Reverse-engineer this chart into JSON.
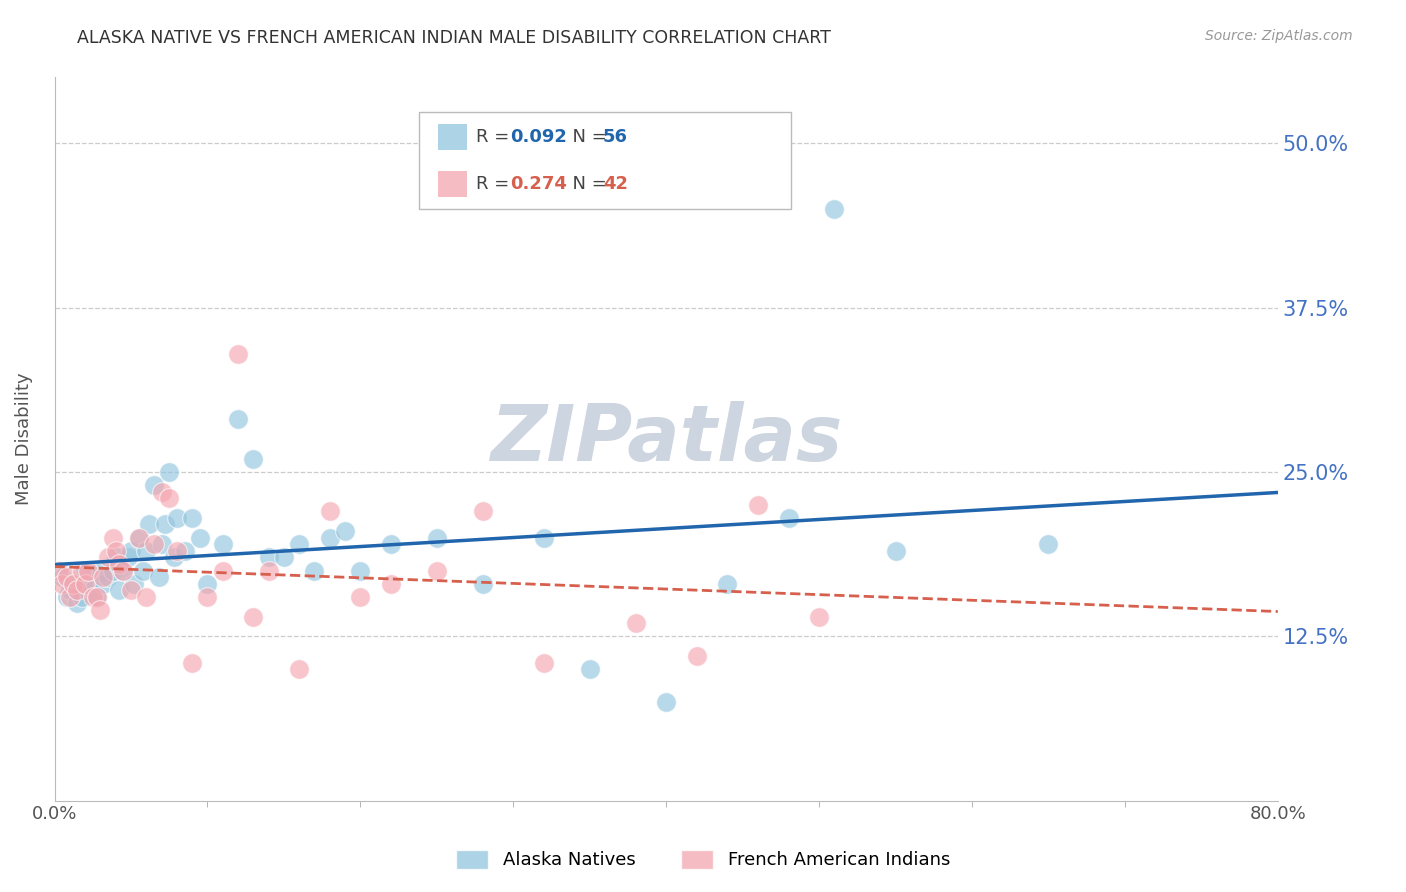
{
  "title": "ALASKA NATIVE VS FRENCH AMERICAN INDIAN MALE DISABILITY CORRELATION CHART",
  "source": "Source: ZipAtlas.com",
  "ylabel": "Male Disability",
  "ytick_labels": [
    "50.0%",
    "37.5%",
    "25.0%",
    "12.5%"
  ],
  "ytick_values": [
    0.5,
    0.375,
    0.25,
    0.125
  ],
  "xlim": [
    0.0,
    0.8
  ],
  "ylim": [
    0.0,
    0.55
  ],
  "blue_color": "#92c5de",
  "pink_color": "#f4a6b0",
  "blue_line_color": "#2166ac",
  "pink_line_color": "#d6604d",
  "title_color": "#333333",
  "axis_label_color": "#555555",
  "ytick_color": "#4472c4",
  "grid_color": "#cccccc",
  "watermark_color": "#cdd5e0",
  "alaska_x": [
    0.005,
    0.008,
    0.01,
    0.012,
    0.015,
    0.018,
    0.02,
    0.022,
    0.025,
    0.028,
    0.03,
    0.032,
    0.035,
    0.038,
    0.04,
    0.042,
    0.045,
    0.048,
    0.05,
    0.052,
    0.055,
    0.058,
    0.06,
    0.062,
    0.065,
    0.068,
    0.07,
    0.072,
    0.075,
    0.078,
    0.08,
    0.085,
    0.09,
    0.095,
    0.1,
    0.11,
    0.12,
    0.13,
    0.14,
    0.15,
    0.16,
    0.17,
    0.18,
    0.19,
    0.2,
    0.22,
    0.25,
    0.28,
    0.32,
    0.35,
    0.4,
    0.44,
    0.48,
    0.51,
    0.55,
    0.65
  ],
  "alaska_y": [
    0.17,
    0.155,
    0.16,
    0.165,
    0.15,
    0.155,
    0.175,
    0.165,
    0.16,
    0.155,
    0.175,
    0.165,
    0.17,
    0.175,
    0.185,
    0.16,
    0.175,
    0.185,
    0.19,
    0.165,
    0.2,
    0.175,
    0.19,
    0.21,
    0.24,
    0.17,
    0.195,
    0.21,
    0.25,
    0.185,
    0.215,
    0.19,
    0.215,
    0.2,
    0.165,
    0.195,
    0.29,
    0.26,
    0.185,
    0.185,
    0.195,
    0.175,
    0.2,
    0.205,
    0.175,
    0.195,
    0.2,
    0.165,
    0.2,
    0.1,
    0.075,
    0.165,
    0.215,
    0.45,
    0.19,
    0.195
  ],
  "french_x": [
    0.003,
    0.005,
    0.008,
    0.01,
    0.012,
    0.015,
    0.018,
    0.02,
    0.022,
    0.025,
    0.028,
    0.03,
    0.032,
    0.035,
    0.038,
    0.04,
    0.042,
    0.045,
    0.05,
    0.055,
    0.06,
    0.065,
    0.07,
    0.075,
    0.08,
    0.09,
    0.1,
    0.11,
    0.12,
    0.13,
    0.14,
    0.16,
    0.18,
    0.2,
    0.22,
    0.25,
    0.28,
    0.32,
    0.38,
    0.42,
    0.46,
    0.5
  ],
  "french_y": [
    0.175,
    0.165,
    0.17,
    0.155,
    0.165,
    0.16,
    0.175,
    0.165,
    0.175,
    0.155,
    0.155,
    0.145,
    0.17,
    0.185,
    0.2,
    0.19,
    0.18,
    0.175,
    0.16,
    0.2,
    0.155,
    0.195,
    0.235,
    0.23,
    0.19,
    0.105,
    0.155,
    0.175,
    0.34,
    0.14,
    0.175,
    0.1,
    0.22,
    0.155,
    0.165,
    0.175,
    0.22,
    0.105,
    0.135,
    0.11,
    0.225,
    0.14
  ]
}
